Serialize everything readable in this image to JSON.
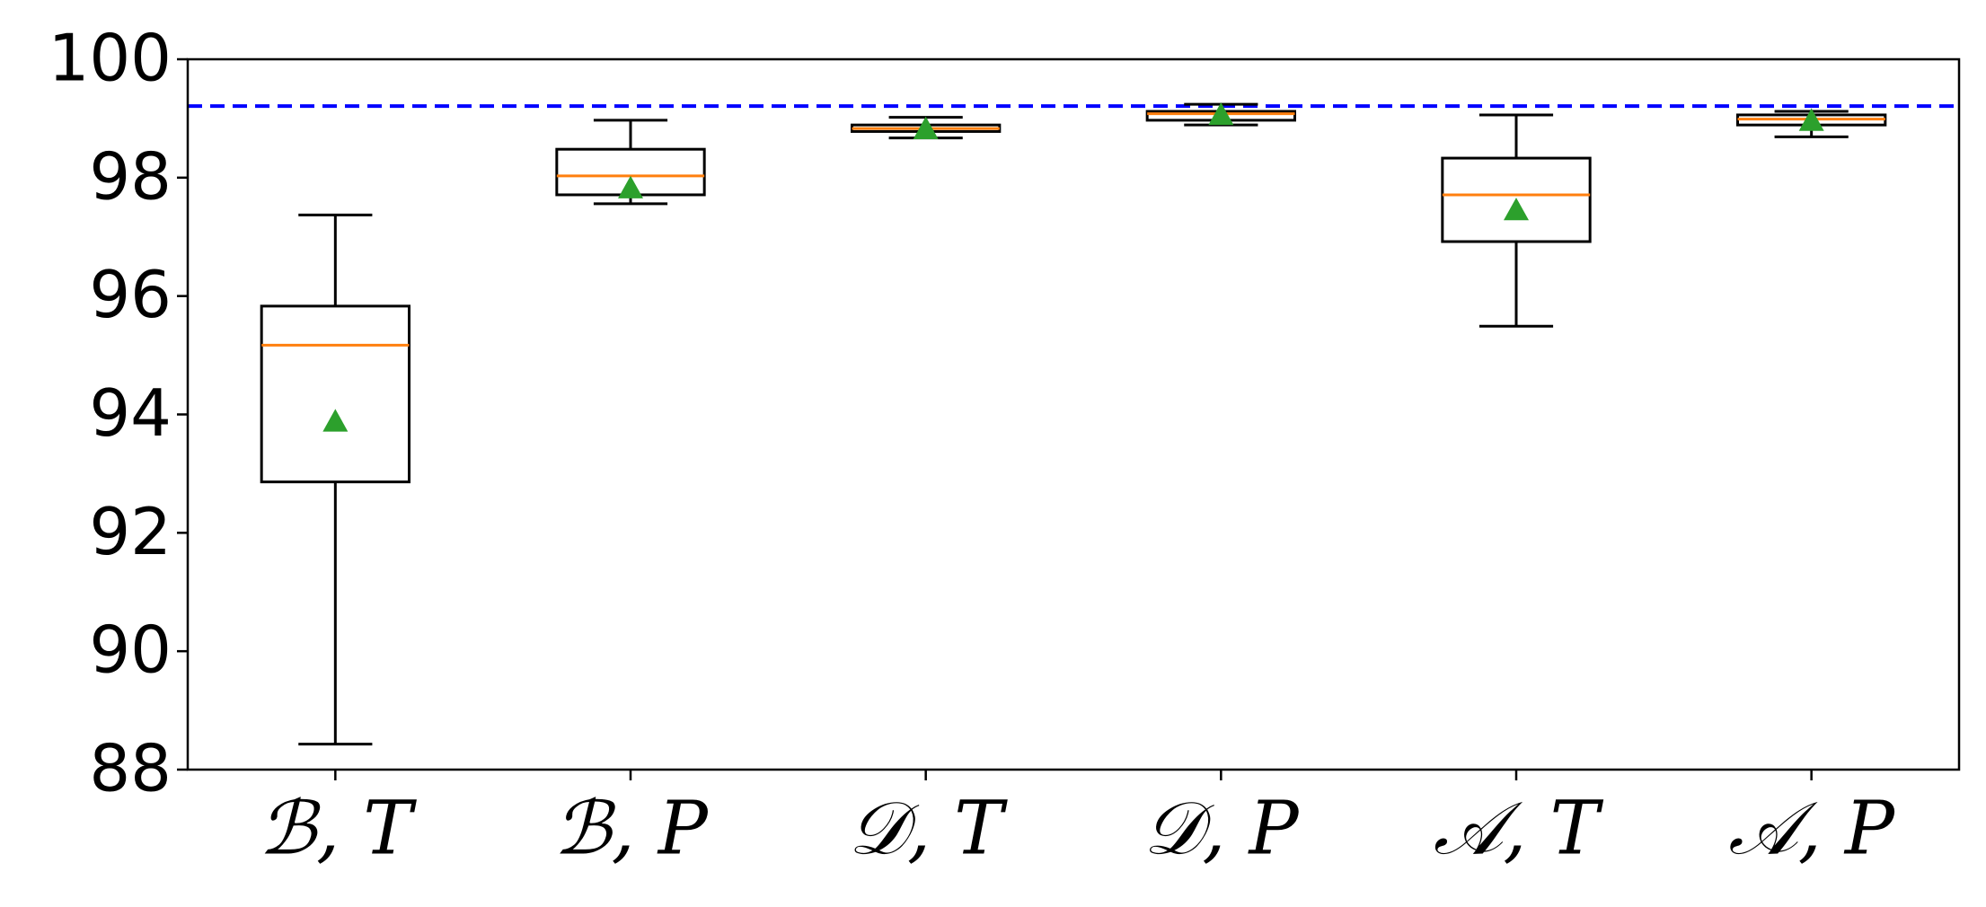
{
  "chart_data": {
    "type": "box",
    "categories": [
      "ℬ, T",
      "ℬ, P",
      "𝒟, T",
      "𝒟, P",
      "𝒜, T",
      "𝒜, P"
    ],
    "boxes": [
      {
        "whislo": 88.43,
        "q1": 92.86,
        "med": 95.17,
        "q3": 95.83,
        "whishi": 97.37,
        "mean": 93.88
      },
      {
        "whislo": 97.56,
        "q1": 97.71,
        "med": 98.03,
        "q3": 98.48,
        "whishi": 98.97,
        "mean": 97.82
      },
      {
        "whislo": 98.67,
        "q1": 98.78,
        "med": 98.83,
        "q3": 98.89,
        "whishi": 99.02,
        "mean": 98.82
      },
      {
        "whislo": 98.89,
        "q1": 98.97,
        "med": 99.08,
        "q3": 99.12,
        "whishi": 99.24,
        "mean": 99.06
      },
      {
        "whislo": 95.49,
        "q1": 96.92,
        "med": 97.71,
        "q3": 98.33,
        "whishi": 99.06,
        "mean": 97.45
      },
      {
        "whislo": 98.69,
        "q1": 98.89,
        "med": 98.99,
        "q3": 99.06,
        "whishi": 99.12,
        "mean": 98.96
      }
    ],
    "box_color": "#000000",
    "median_color": "#ff7f0e",
    "mean_color": "#2ca02c",
    "reference_line": {
      "value": 99.21,
      "color": "#0000ff"
    },
    "ylim": [
      88,
      100
    ],
    "yticks": [
      88,
      90,
      92,
      94,
      96,
      98,
      100
    ]
  }
}
